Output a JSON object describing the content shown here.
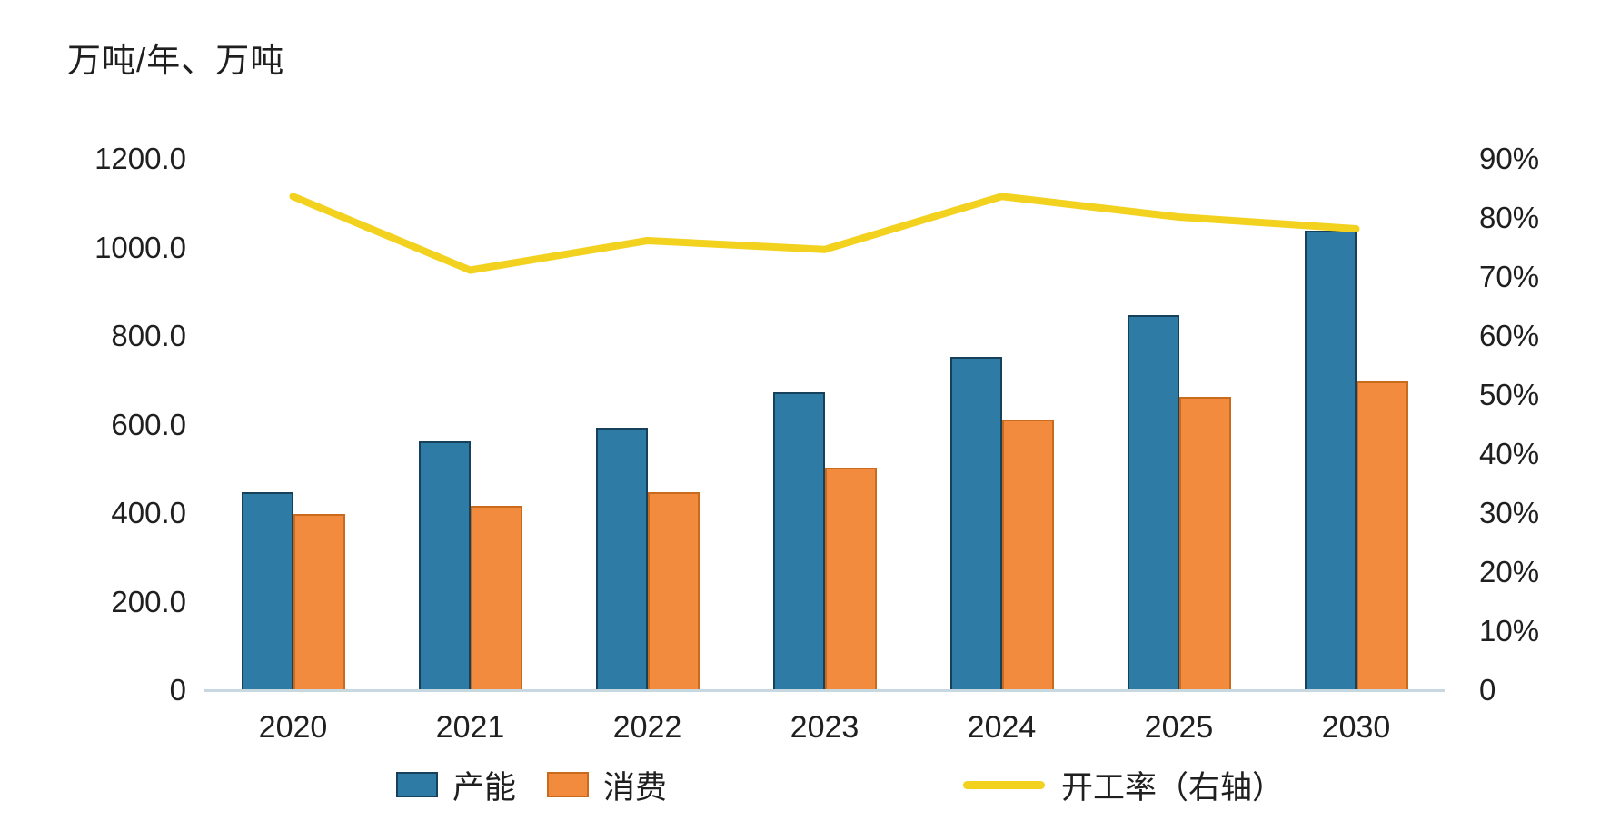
{
  "title": "万吨/年、万吨",
  "chart_data": {
    "type": "combo-bar-line",
    "unit_label": "万吨/年、万吨",
    "categories": [
      "2020",
      "2021",
      "2022",
      "2023",
      "2024",
      "2025",
      "2030"
    ],
    "series": [
      {
        "name": "产能",
        "type": "bar",
        "axis": "left",
        "color": "#2E7CA6",
        "border_color": "#17405A",
        "values": [
          445,
          560,
          590,
          670,
          750,
          845,
          1035
        ]
      },
      {
        "name": "消费",
        "type": "bar",
        "axis": "left",
        "color": "#F28B3E",
        "border_color": "#C96A1C",
        "values": [
          395,
          415,
          445,
          500,
          610,
          660,
          695
        ]
      },
      {
        "name": "开工率（右轴）",
        "type": "line",
        "axis": "right",
        "color": "#F2D11F",
        "values": [
          83.5,
          71,
          76,
          74.5,
          83.5,
          80,
          78
        ]
      }
    ],
    "left_axis": {
      "ticks": [
        "1200.0",
        "1000.0",
        "800.0",
        "600.0",
        "400.0",
        "200.0",
        "0"
      ],
      "tick_values": [
        1200,
        1000,
        800,
        600,
        400,
        200,
        0
      ],
      "min": 0,
      "max": 1200
    },
    "right_axis": {
      "ticks": [
        "90%",
        "80%",
        "70%",
        "60%",
        "50%",
        "40%",
        "30%",
        "20%",
        "10%",
        "0"
      ],
      "tick_values": [
        90,
        80,
        70,
        60,
        50,
        40,
        30,
        20,
        10,
        0
      ],
      "min": 0,
      "max": 90
    },
    "legend_position": "bottom",
    "grid": false,
    "axis_line_color": "#C8D8E0",
    "text_color": "#1F1F1F",
    "background_color": "#FFFFFF"
  }
}
